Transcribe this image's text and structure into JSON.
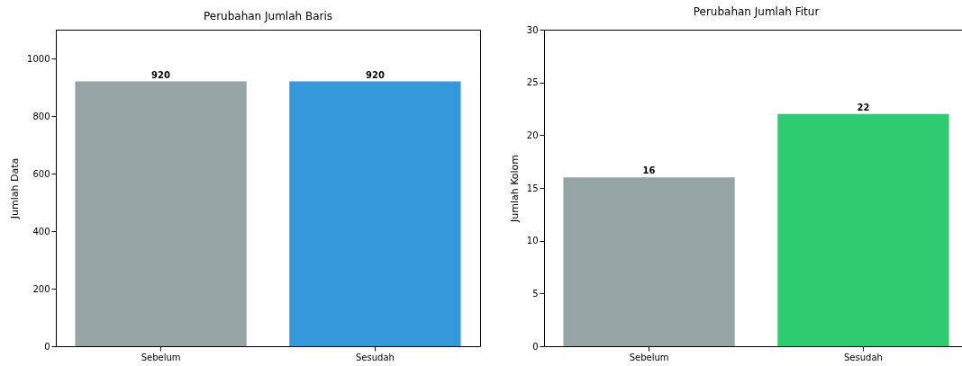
{
  "chart_data": [
    {
      "type": "bar",
      "title": "Perubahan Jumlah Baris",
      "ylabel": "Jumlah Data",
      "categories": [
        "Sebelum",
        "Sesudah"
      ],
      "values": [
        920,
        920
      ],
      "colors": [
        "#95a5a6",
        "#3498db"
      ],
      "ylim": [
        0,
        1100
      ],
      "yticks": [
        0,
        200,
        400,
        600,
        800,
        1000
      ],
      "data_labels": true
    },
    {
      "type": "bar",
      "title": "Perubahan Jumlah Fitur",
      "ylabel": "Jumlah Kolom",
      "categories": [
        "Sebelum",
        "Sesudah"
      ],
      "values": [
        16,
        22
      ],
      "colors": [
        "#95a5a6",
        "#2ecc71"
      ],
      "ylim": [
        0,
        30
      ],
      "yticks": [
        0,
        5,
        10,
        15,
        20,
        25,
        30
      ],
      "data_labels": true
    }
  ]
}
